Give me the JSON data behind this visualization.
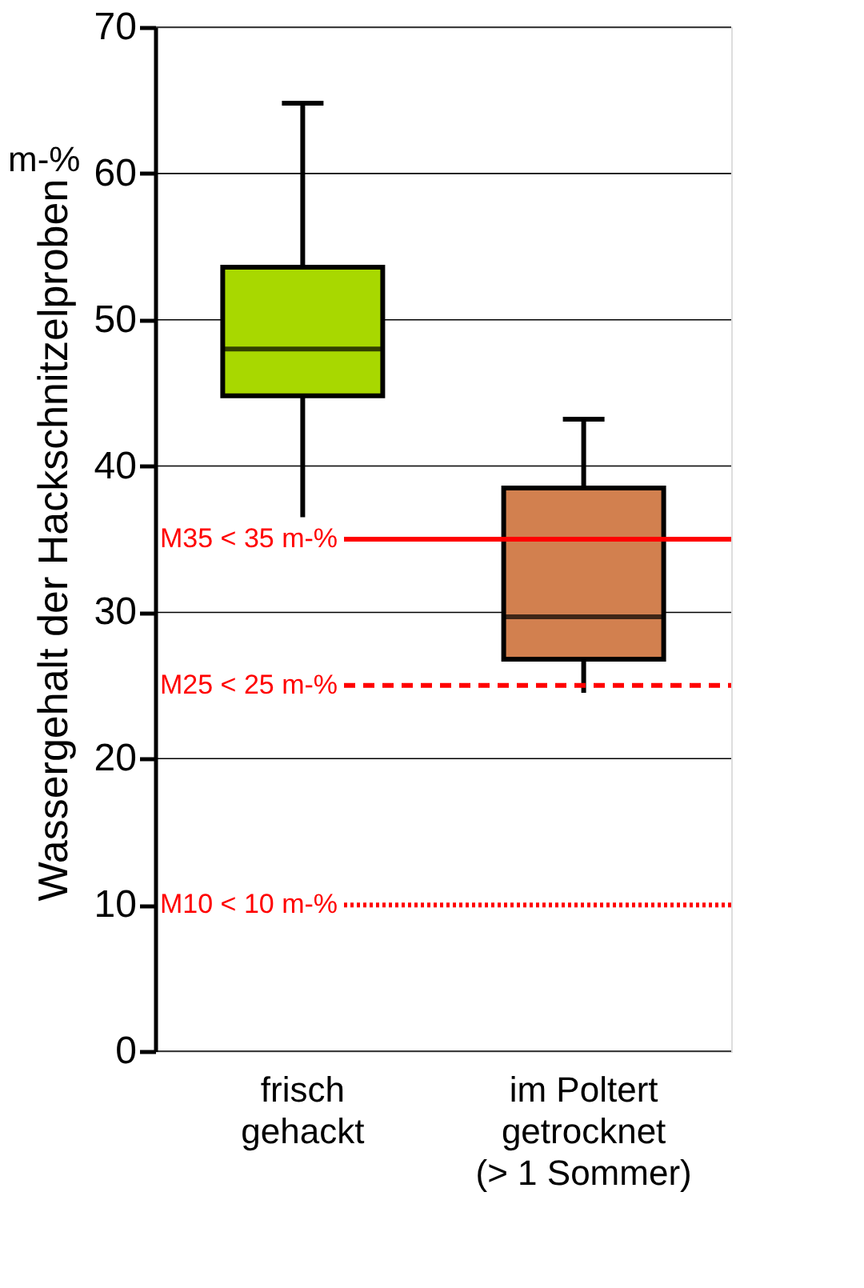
{
  "chart_data": {
    "type": "box",
    "ylabel": "Wassergehalt der Hackschnitzelproben",
    "categories": [
      "frisch\ngehackt",
      "im Poltert\ngetrocknet\n(> 1 Sommer)"
    ],
    "colors": [
      "#a8d800",
      "#d2804f"
    ],
    "boxes": [
      {
        "low": 36.5,
        "q1": 44.8,
        "median": 48.0,
        "q3": 53.6,
        "high": 64.8
      },
      {
        "low": 24.5,
        "q1": 26.8,
        "median": 29.7,
        "q3": 38.5,
        "high": 43.2
      }
    ],
    "ylim": [
      0,
      70
    ],
    "yticks": [
      0,
      10,
      20,
      30,
      40,
      50,
      60,
      70
    ],
    "grid": "y",
    "annotations": [
      "m-%"
    ],
    "ref_lines": [
      {
        "axis": "y",
        "value": 35,
        "label": "M35 < 35 m-%",
        "color": "#ff0000",
        "line_style": "solid"
      },
      {
        "axis": "y",
        "value": 25,
        "label": "M25 < 25 m-%",
        "color": "#ff0000",
        "line_style": "dashed"
      },
      {
        "axis": "y",
        "value": 10,
        "label": "M10 < 10 m-%",
        "color": "#ff0000",
        "line_style": "dotted"
      }
    ]
  }
}
